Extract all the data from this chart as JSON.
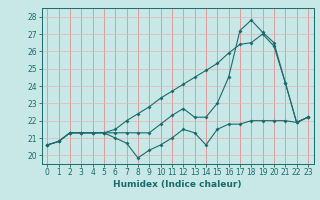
{
  "xlabel": "Humidex (Indice chaleur)",
  "ylabel": "",
  "xlim": [
    -0.5,
    23.5
  ],
  "ylim": [
    19.5,
    28.5
  ],
  "yticks": [
    20,
    21,
    22,
    23,
    24,
    25,
    26,
    27,
    28
  ],
  "xticks": [
    0,
    1,
    2,
    3,
    4,
    5,
    6,
    7,
    8,
    9,
    10,
    11,
    12,
    13,
    14,
    15,
    16,
    17,
    18,
    19,
    20,
    21,
    22,
    23
  ],
  "background_color": "#c8e8e8",
  "grid_color_v": "#e08080",
  "grid_color_h": "#e8b0b0",
  "line_color": "#1a6b6b",
  "line1_y": [
    20.6,
    20.8,
    21.3,
    21.3,
    21.3,
    21.3,
    21.0,
    20.7,
    19.85,
    20.3,
    20.6,
    21.0,
    21.5,
    21.3,
    20.6,
    21.5,
    21.8,
    21.8,
    22.0,
    22.0,
    22.0,
    22.0,
    21.9,
    22.2
  ],
  "line2_y": [
    20.6,
    20.8,
    21.3,
    21.3,
    21.3,
    21.3,
    21.5,
    22.0,
    22.4,
    22.8,
    23.3,
    23.7,
    24.1,
    24.5,
    24.9,
    25.3,
    25.9,
    26.4,
    26.5,
    27.0,
    26.3,
    24.2,
    21.9,
    22.2
  ],
  "line3_y": [
    20.6,
    20.8,
    21.3,
    21.3,
    21.3,
    21.3,
    21.3,
    21.3,
    21.3,
    21.3,
    21.8,
    22.3,
    22.7,
    22.2,
    22.2,
    23.0,
    24.5,
    27.2,
    27.8,
    27.1,
    26.5,
    24.2,
    21.9,
    22.2
  ],
  "tick_fontsize": 5.5,
  "xlabel_fontsize": 6.5
}
